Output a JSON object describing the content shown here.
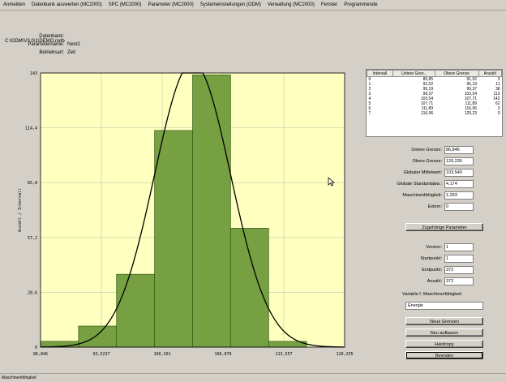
{
  "menu": [
    "Anmelden",
    "Datenbank auswerten (MC2000)",
    "SPC (MC2000)",
    "Parameter (MC2000)",
    "Systemeinstellungen (ODM)",
    "Verwaltung (MC2000)",
    "Fenster",
    "Programmende"
  ],
  "info": {
    "db_label": "Datenbank:",
    "db_value": "C:\\ODM\\V3.0\\1\\DEMO.mdb",
    "param_label": "Parametername:",
    "param_value": "Next2",
    "mode_label": "Betriebsart:",
    "mode_value": "Zeit"
  },
  "table": {
    "headers": [
      "Intervall",
      "Untere Gren..",
      "Obere Grenze",
      "Anzahl"
    ],
    "rows": [
      [
        "0",
        "86,85",
        "91,02",
        "3"
      ],
      [
        "1",
        "91,02",
        "95,19",
        "11"
      ],
      [
        "2",
        "95,19",
        "99,37",
        "38"
      ],
      [
        "3",
        "99,37",
        "103,54",
        "113"
      ],
      [
        "4",
        "103,54",
        "107,71",
        "142"
      ],
      [
        "5",
        "107,71",
        "111,89",
        "62"
      ],
      [
        "6",
        "111,89",
        "116,06",
        "3"
      ],
      [
        "7",
        "116,06",
        "120,23",
        "0"
      ]
    ]
  },
  "stats": [
    {
      "label": "Untere Grenze:",
      "value": "86,846"
    },
    {
      "label": "Obere Grenze:",
      "value": "120,235"
    },
    {
      "label": "Globaler Mittelwert:",
      "value": "103,540"
    },
    {
      "label": "Globale Standardabw.:",
      "value": "4,174"
    },
    {
      "label": "Maschinenfähigkeit:",
      "value": "1,333"
    },
    {
      "label": "Extern:",
      "value": "0"
    }
  ],
  "buttons": {
    "zugehoerige": "Zugehörige Parameter",
    "neue_grenzen": "Neue Grenzen",
    "neu_aufbauen": "Neu aufbauen",
    "hardcopy": "Hardcopy",
    "beenden": "Beenden"
  },
  "params": [
    {
      "label": "Version:",
      "value": "1"
    },
    {
      "label": "Startpunkt:",
      "value": "1"
    },
    {
      "label": "Endpunkt:",
      "value": "372"
    },
    {
      "label": "Anzahl:",
      "value": "372"
    }
  ],
  "variable": {
    "label": "Variable f. Maschinenfähigkeit",
    "value": "Energie"
  },
  "status": "Maschinenfähigkeit",
  "chart_data": {
    "type": "bar",
    "bins": [
      [
        86.846,
        91.02
      ],
      [
        91.02,
        95.19
      ],
      [
        95.19,
        99.37
      ],
      [
        99.37,
        103.54
      ],
      [
        103.54,
        107.71
      ],
      [
        107.71,
        111.89
      ],
      [
        111.89,
        116.06
      ],
      [
        116.06,
        120.235
      ]
    ],
    "values": [
      3,
      11,
      38,
      113,
      142,
      62,
      3,
      0
    ],
    "xlim": [
      86.846,
      120.235
    ],
    "ylim": [
      0,
      143
    ],
    "xticks": [
      "86,846",
      "93,5237",
      "100,201",
      "106,879",
      "113,557",
      "120,235"
    ],
    "yticks": [
      "0",
      "28,6",
      "57,2",
      "85,8",
      "114,4",
      "143"
    ],
    "ylabel": "Anzahl / Intervall",
    "normal_curve": {
      "mean": 103.54,
      "std": 4.174
    },
    "colors": {
      "bar": "#77a043",
      "bar_edge": "#2e5a12",
      "plot_bg": "#ffffc0",
      "curve": "#000000"
    }
  }
}
